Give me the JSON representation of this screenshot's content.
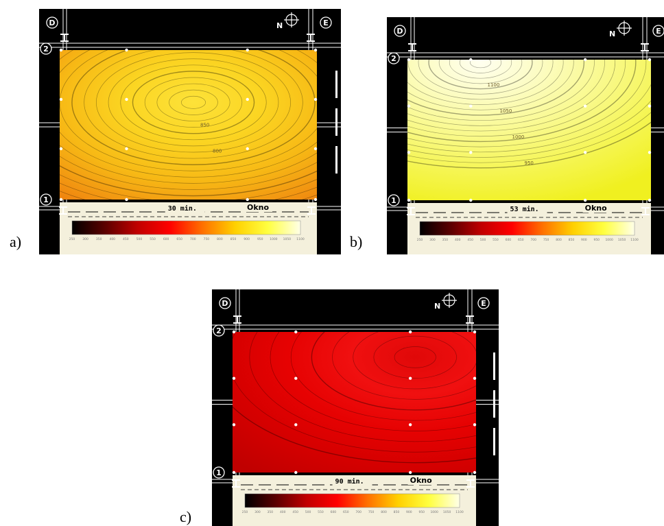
{
  "panels": [
    {
      "id": "a",
      "caption": "a)",
      "grid_top_left": "D",
      "grid_top_right": "E",
      "grid_left_top": "2",
      "grid_left_bottom": "1",
      "north_label": "N",
      "time_label": "30 min.",
      "window_label": "Okno",
      "contour_labels": [
        "850",
        "800"
      ],
      "palette": [
        "#e05a0a",
        "#f08a10",
        "#f7b915",
        "#fbd522",
        "#fde239"
      ]
    },
    {
      "id": "b",
      "caption": "b)",
      "grid_top_left": "D",
      "grid_top_right": "E",
      "grid_left_top": "2",
      "grid_left_bottom": "1",
      "north_label": "N",
      "time_label": "53 min.",
      "window_label": "Okno",
      "contour_labels": [
        "1100",
        "1050",
        "1000",
        "950"
      ],
      "palette": [
        "#f0f020",
        "#f5f550",
        "#f9f98a",
        "#fcfcc0",
        "#fffff0"
      ]
    },
    {
      "id": "c",
      "caption": "c)",
      "grid_top_left": "D",
      "grid_top_right": "E",
      "grid_left_top": "2",
      "grid_left_bottom": "1",
      "north_label": "N",
      "time_label": "90 min.",
      "window_label": "Okno",
      "contour_labels": [],
      "palette": [
        "#c00000",
        "#d40000",
        "#e60202",
        "#f01010",
        "#e00808"
      ]
    }
  ],
  "colorbar": {
    "ticks": [
      "250",
      "300",
      "350",
      "400",
      "450",
      "500",
      "550",
      "600",
      "650",
      "700",
      "750",
      "800",
      "850",
      "900",
      "950",
      "1000",
      "1050",
      "1100"
    ],
    "colors": [
      "#000000",
      "#5a0000",
      "#c00000",
      "#ff0000",
      "#ff7000",
      "#ffd000",
      "#ffff40",
      "#ffffe8"
    ]
  }
}
